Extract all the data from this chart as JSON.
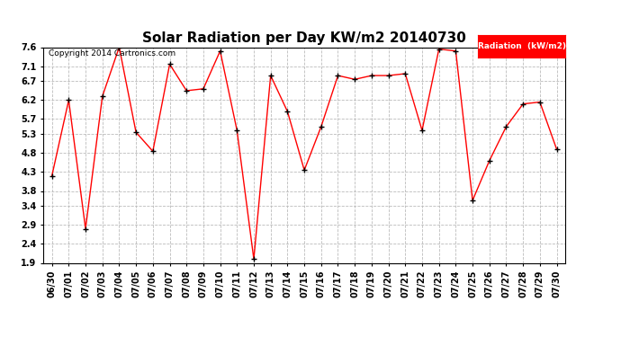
{
  "title": "Solar Radiation per Day KW/m2 20140730",
  "copyright": "Copyright 2014 Cartronics.com",
  "legend_label": "Radiation  (kW/m2)",
  "dates": [
    "06/30",
    "07/01",
    "07/02",
    "07/03",
    "07/04",
    "07/05",
    "07/06",
    "07/07",
    "07/08",
    "07/09",
    "07/10",
    "07/11",
    "07/12",
    "07/13",
    "07/14",
    "07/15",
    "07/16",
    "07/17",
    "07/18",
    "07/19",
    "07/20",
    "07/21",
    "07/22",
    "07/23",
    "07/24",
    "07/25",
    "07/26",
    "07/27",
    "07/28",
    "07/29",
    "07/30"
  ],
  "values": [
    4.2,
    6.2,
    2.8,
    6.3,
    7.6,
    5.35,
    4.85,
    7.15,
    6.45,
    6.5,
    7.5,
    5.4,
    2.0,
    6.85,
    5.9,
    4.35,
    5.5,
    6.85,
    6.75,
    6.85,
    6.85,
    6.9,
    5.4,
    7.55,
    7.5,
    3.55,
    4.6,
    5.5,
    6.1,
    6.15,
    4.9
  ],
  "line_color": "red",
  "marker_color": "black",
  "background_color": "white",
  "grid_color": "#bbbbbb",
  "ylim_min": 1.9,
  "ylim_max": 7.6,
  "yticks": [
    1.9,
    2.4,
    2.9,
    3.4,
    3.8,
    4.3,
    4.8,
    5.3,
    5.7,
    6.2,
    6.7,
    7.1,
    7.6
  ],
  "title_fontsize": 11,
  "tick_fontsize": 7,
  "legend_box_color": "red",
  "legend_text_color": "white"
}
